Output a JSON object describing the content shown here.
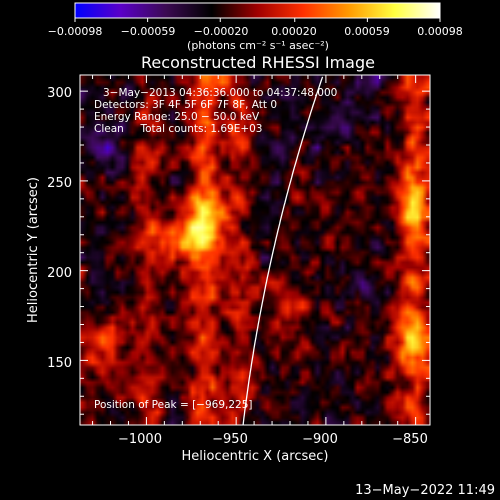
{
  "chart_data": {
    "type": "heatmap",
    "title": "Reconstructed RHESSI Image",
    "xlabel": "Heliocentric X (arcsec)",
    "ylabel": "Heliocentric Y (arcsec)",
    "xlim": [
      -1037,
      -842
    ],
    "ylim": [
      114,
      309
    ],
    "x_ticks": [
      -1000,
      -950,
      -900,
      -850
    ],
    "x_tick_labels": [
      "−1000",
      "−950",
      "−900",
      "−850"
    ],
    "y_ticks": [
      150,
      200,
      250,
      300
    ],
    "y_tick_labels": [
      "150",
      "200",
      "250",
      "300"
    ],
    "colorbar": {
      "range": [
        -0.00098,
        0.00098
      ],
      "ticks": [
        -0.00098,
        -0.00059,
        -0.0002,
        0.0002,
        0.00059,
        0.00098
      ],
      "tick_labels": [
        "−0.00098",
        "−0.00059",
        "−0.00020",
        "0.00020",
        "0.00059",
        "0.00098"
      ],
      "units": "(photons cm⁻² s⁻¹ asec⁻²)",
      "colors": [
        "#0000ff",
        "#5a00c8",
        "#3b0a52",
        "#000000",
        "#a00000",
        "#ff3000",
        "#ff9a00",
        "#ffff40",
        "#ffffff"
      ]
    },
    "annotations": {
      "time_range": "3−May−2013 04:36:36.000 to 04:37:48.000",
      "detectors": "Detectors: 3F 4F 5F 6F 7F 8F, Att 0",
      "energy_range": "Energy Range: 25.0 − 50.0 keV",
      "method_and_counts": "Clean     Total counts: 1.69E+03",
      "peak_position": "Position of Peak = [−969,225]"
    },
    "limb_color": "#ffffff",
    "intensity_shape": {
      "vertical_stripes": [
        {
          "x_center": -1000,
          "strength": 0.55
        },
        {
          "x_center": -968,
          "strength": 0.9
        },
        {
          "x_center": -948,
          "strength": 0.55
        },
        {
          "x_center": -850,
          "strength": 0.8
        }
      ],
      "bright_blobs": [
        {
          "x": -969,
          "y": 225,
          "strength": 1.0
        },
        {
          "x": -985,
          "y": 215,
          "strength": 0.7
        },
        {
          "x": -1025,
          "y": 155,
          "strength": 0.75
        },
        {
          "x": -852,
          "y": 160,
          "strength": 0.8
        },
        {
          "x": -851,
          "y": 235,
          "strength": 0.7
        },
        {
          "x": -920,
          "y": 180,
          "strength": 0.45
        }
      ],
      "negative_patches": [
        {
          "x": -1022,
          "y": 268,
          "strength": 0.8
        },
        {
          "x": -1005,
          "y": 300,
          "strength": 0.6
        },
        {
          "x": -892,
          "y": 285,
          "strength": 0.7
        },
        {
          "x": -875,
          "y": 305,
          "strength": 0.5
        }
      ]
    }
  },
  "footer": {
    "timestamp": "13−May−2022 11:49"
  }
}
